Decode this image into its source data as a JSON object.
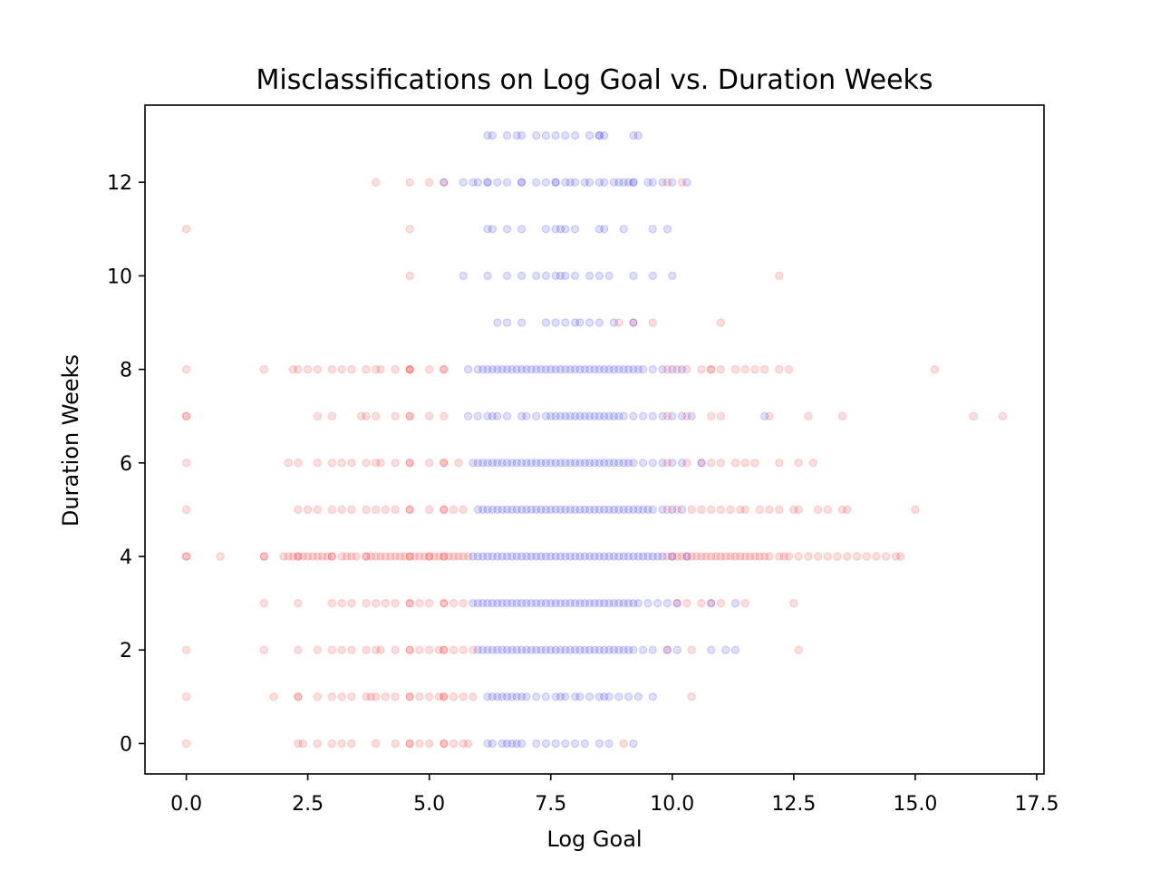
{
  "chart_data": {
    "type": "scatter",
    "title": "Misclassifications on Log Goal vs. Duration Weeks",
    "xlabel": "Log Goal",
    "ylabel": "Duration Weeks",
    "xlim": [
      -0.85,
      17.65
    ],
    "ylim": [
      -0.65,
      13.65
    ],
    "xticks": [
      "0.0",
      "2.5",
      "5.0",
      "7.5",
      "10.0",
      "12.5",
      "15.0",
      "17.5"
    ],
    "yticks": [
      "0",
      "2",
      "4",
      "6",
      "8",
      "10",
      "12"
    ],
    "xtick_values": [
      0,
      2.5,
      5,
      7.5,
      10,
      12.5,
      15,
      17.5
    ],
    "ytick_values": [
      0,
      2,
      4,
      6,
      8,
      10,
      12
    ],
    "marker_opacity": 0.12,
    "grid": false,
    "series": [
      {
        "color": "#ff0000",
        "rows": [
          {
            "y": 13,
            "x": []
          },
          {
            "y": 12,
            "x": [
              3.9,
              4.6,
              5.0,
              5.3,
              9.9,
              10.2
            ]
          },
          {
            "y": 11,
            "x": [
              0.0,
              4.6
            ]
          },
          {
            "y": 10,
            "x": [
              4.6,
              12.2
            ]
          },
          {
            "y": 9,
            "x": [
              8.9,
              9.2,
              9.6,
              11.0
            ]
          },
          {
            "y": 8,
            "x": [
              0.0,
              1.6,
              2.2,
              2.3,
              2.5,
              2.7,
              3.0,
              3.2,
              3.4,
              3.7,
              3.9,
              4.0,
              4.3,
              4.6,
              4.6,
              4.6,
              5.0,
              5.3,
              5.3,
              9.9,
              10.1,
              10.3,
              10.6,
              10.8,
              10.8,
              11.0,
              11.3,
              11.5,
              11.7,
              11.9,
              12.2,
              12.4,
              15.4
            ]
          },
          {
            "y": 7,
            "x": [
              0.0,
              0.0,
              2.7,
              3.0,
              3.6,
              3.7,
              3.9,
              4.3,
              4.6,
              4.6,
              5.0,
              5.3,
              9.9,
              10.3,
              10.8,
              11.0,
              12.0,
              12.8,
              13.5,
              16.2,
              16.8
            ]
          },
          {
            "y": 6,
            "x": [
              0.0,
              2.1,
              2.3,
              2.7,
              3.0,
              3.2,
              3.4,
              3.7,
              3.9,
              4.0,
              4.3,
              4.6,
              4.6,
              5.0,
              5.3,
              5.3,
              5.6,
              9.9,
              10.3,
              10.6,
              10.8,
              11.0,
              11.3,
              11.5,
              11.7,
              12.2,
              12.6,
              12.9
            ]
          },
          {
            "y": 5,
            "x": [
              0.0,
              2.3,
              2.5,
              2.7,
              3.0,
              3.2,
              3.4,
              3.7,
              3.9,
              4.1,
              4.3,
              4.6,
              4.6,
              5.0,
              5.3,
              5.3,
              5.5,
              5.7,
              9.9,
              10.1,
              10.4,
              10.6,
              10.8,
              11.0,
              11.2,
              11.4,
              11.5,
              11.8,
              12.0,
              12.2,
              12.5,
              12.6,
              13.0,
              13.2,
              13.5,
              13.6,
              15.0
            ]
          },
          {
            "y": 4,
            "x": [
              0.0,
              0.0,
              0.7,
              1.6,
              1.6,
              2.0,
              2.1,
              2.2,
              2.3,
              2.3,
              2.4,
              2.5,
              2.6,
              2.7,
              2.8,
              2.9,
              3.0,
              3.0,
              3.2,
              3.3,
              3.4,
              3.5,
              3.7,
              3.7,
              3.8,
              3.9,
              4.0,
              4.1,
              4.2,
              4.3,
              4.4,
              4.5,
              4.6,
              4.6,
              4.7,
              4.8,
              4.9,
              5.0,
              5.0,
              5.1,
              5.2,
              5.3,
              5.3,
              5.4,
              5.5,
              5.6,
              5.7,
              5.8,
              9.9,
              10.0,
              10.1,
              10.2,
              10.3,
              10.4,
              10.5,
              10.6,
              10.7,
              10.8,
              10.9,
              11.0,
              11.1,
              11.2,
              11.3,
              11.4,
              11.5,
              11.6,
              11.7,
              11.8,
              11.9,
              12.0,
              12.2,
              12.3,
              12.4,
              12.6,
              12.8,
              13.0,
              13.2,
              13.4,
              13.6,
              13.8,
              14.0,
              14.2,
              14.4,
              14.6,
              14.7
            ]
          },
          {
            "y": 3,
            "x": [
              1.6,
              2.3,
              3.0,
              3.2,
              3.4,
              3.7,
              3.9,
              4.1,
              4.3,
              4.6,
              4.6,
              4.8,
              5.0,
              5.3,
              5.3,
              5.5,
              5.7,
              10.1,
              10.3,
              10.6,
              10.8,
              11.0,
              11.5,
              12.5
            ]
          },
          {
            "y": 2,
            "x": [
              0.0,
              1.6,
              2.3,
              2.7,
              3.0,
              3.2,
              3.4,
              3.7,
              3.9,
              4.0,
              4.3,
              4.6,
              4.6,
              4.8,
              5.0,
              5.2,
              5.3,
              5.3,
              5.5,
              5.7,
              5.9,
              9.9,
              10.4,
              12.6
            ]
          },
          {
            "y": 1,
            "x": [
              0.0,
              1.8,
              2.3,
              2.3,
              2.7,
              3.0,
              3.2,
              3.4,
              3.7,
              3.8,
              3.9,
              4.1,
              4.3,
              4.6,
              4.6,
              4.8,
              5.0,
              5.2,
              5.3,
              5.3,
              5.5,
              5.7,
              5.9,
              10.4
            ]
          },
          {
            "y": 0,
            "x": [
              0.0,
              2.3,
              2.4,
              2.7,
              3.0,
              3.2,
              3.4,
              3.9,
              4.3,
              4.6,
              4.6,
              4.8,
              5.0,
              5.3,
              5.3,
              5.5,
              5.7,
              5.8,
              9.0
            ]
          }
        ]
      },
      {
        "color": "#0000ff",
        "rows": [
          {
            "y": 13,
            "x": [
              6.2,
              6.3,
              6.6,
              6.8,
              6.9,
              7.2,
              7.4,
              7.6,
              7.8,
              8.0,
              8.3,
              8.5,
              8.5,
              8.6,
              9.2,
              9.3
            ]
          },
          {
            "y": 12,
            "x": [
              5.3,
              5.7,
              5.9,
              6.0,
              6.2,
              6.2,
              6.4,
              6.6,
              6.9,
              6.9,
              7.2,
              7.4,
              7.6,
              7.6,
              7.8,
              7.9,
              8.0,
              8.2,
              8.3,
              8.5,
              8.6,
              8.8,
              8.9,
              9.0,
              9.1,
              9.2,
              9.2,
              9.5,
              9.6,
              9.8,
              10.0,
              10.3
            ]
          },
          {
            "y": 11,
            "x": [
              6.2,
              6.3,
              6.6,
              6.9,
              7.4,
              7.6,
              7.7,
              7.8,
              8.0,
              8.5,
              8.6,
              9.0,
              9.6,
              9.9
            ]
          },
          {
            "y": 10,
            "x": [
              5.7,
              6.2,
              6.6,
              6.9,
              7.2,
              7.4,
              7.6,
              7.7,
              7.8,
              8.0,
              8.3,
              8.5,
              8.7,
              9.2,
              9.6,
              10.0
            ]
          },
          {
            "y": 9,
            "x": [
              6.4,
              6.6,
              6.9,
              7.4,
              7.6,
              7.8,
              8.0,
              8.1,
              8.3,
              8.5,
              8.8,
              9.2
            ]
          },
          {
            "y": 8,
            "x": [
              5.8,
              6.0,
              6.1,
              6.2,
              6.3,
              6.4,
              6.5,
              6.6,
              6.7,
              6.8,
              6.9,
              7.0,
              7.1,
              7.2,
              7.3,
              7.4,
              7.5,
              7.6,
              7.7,
              7.8,
              7.9,
              8.0,
              8.1,
              8.2,
              8.3,
              8.4,
              8.5,
              8.6,
              8.7,
              8.8,
              8.9,
              9.0,
              9.1,
              9.2,
              9.3,
              9.4,
              9.6,
              9.8,
              10.0,
              10.2
            ]
          },
          {
            "y": 7,
            "x": [
              5.8,
              6.0,
              6.2,
              6.3,
              6.4,
              6.6,
              6.9,
              7.0,
              7.2,
              7.4,
              7.5,
              7.6,
              7.7,
              7.8,
              7.9,
              8.0,
              8.1,
              8.2,
              8.3,
              8.4,
              8.5,
              8.6,
              8.7,
              8.8,
              8.9,
              9.0,
              9.2,
              9.4,
              9.6,
              9.8,
              10.0,
              10.2,
              10.4,
              11.9
            ]
          },
          {
            "y": 6,
            "x": [
              5.9,
              6.0,
              6.1,
              6.2,
              6.3,
              6.4,
              6.5,
              6.6,
              6.7,
              6.8,
              6.9,
              7.0,
              7.1,
              7.2,
              7.3,
              7.4,
              7.5,
              7.6,
              7.7,
              7.8,
              7.9,
              8.0,
              8.1,
              8.2,
              8.3,
              8.4,
              8.5,
              8.6,
              8.7,
              8.8,
              8.9,
              9.0,
              9.1,
              9.2,
              9.4,
              9.6,
              9.8,
              10.0,
              10.2,
              10.6
            ]
          },
          {
            "y": 5,
            "x": [
              6.0,
              6.1,
              6.2,
              6.3,
              6.4,
              6.5,
              6.6,
              6.7,
              6.8,
              6.9,
              7.0,
              7.1,
              7.2,
              7.3,
              7.4,
              7.5,
              7.6,
              7.7,
              7.8,
              7.9,
              8.0,
              8.1,
              8.2,
              8.3,
              8.4,
              8.5,
              8.6,
              8.7,
              8.8,
              8.9,
              9.0,
              9.1,
              9.2,
              9.3,
              9.4,
              9.5,
              9.6,
              9.8,
              10.0,
              10.2
            ]
          },
          {
            "y": 4,
            "x": [
              5.9,
              6.0,
              6.1,
              6.2,
              6.3,
              6.4,
              6.5,
              6.6,
              6.7,
              6.8,
              6.9,
              7.0,
              7.1,
              7.2,
              7.3,
              7.4,
              7.5,
              7.6,
              7.7,
              7.8,
              7.9,
              8.0,
              8.1,
              8.2,
              8.3,
              8.4,
              8.5,
              8.6,
              8.7,
              8.8,
              8.9,
              9.0,
              9.1,
              9.2,
              9.3,
              9.4,
              9.5,
              9.6,
              9.7,
              9.8,
              10.0,
              10.3
            ]
          },
          {
            "y": 3,
            "x": [
              5.9,
              6.0,
              6.1,
              6.2,
              6.3,
              6.4,
              6.5,
              6.6,
              6.7,
              6.8,
              6.9,
              7.0,
              7.1,
              7.2,
              7.3,
              7.4,
              7.5,
              7.6,
              7.7,
              7.8,
              7.9,
              8.0,
              8.1,
              8.2,
              8.3,
              8.4,
              8.5,
              8.6,
              8.7,
              8.8,
              8.9,
              9.0,
              9.1,
              9.2,
              9.3,
              9.5,
              9.7,
              9.9,
              10.1,
              10.8,
              11.3
            ]
          },
          {
            "y": 2,
            "x": [
              6.0,
              6.1,
              6.2,
              6.3,
              6.4,
              6.5,
              6.6,
              6.7,
              6.8,
              6.9,
              7.0,
              7.1,
              7.2,
              7.3,
              7.4,
              7.5,
              7.6,
              7.7,
              7.8,
              7.9,
              8.0,
              8.1,
              8.2,
              8.3,
              8.4,
              8.5,
              8.6,
              8.7,
              8.8,
              8.9,
              9.0,
              9.1,
              9.2,
              9.4,
              9.6,
              9.9,
              10.1,
              10.8,
              11.1,
              11.3
            ]
          },
          {
            "y": 1,
            "x": [
              6.2,
              6.3,
              6.4,
              6.5,
              6.6,
              6.7,
              6.8,
              6.9,
              7.0,
              7.2,
              7.4,
              7.6,
              7.7,
              7.8,
              8.0,
              8.1,
              8.3,
              8.5,
              8.6,
              8.7,
              8.9,
              9.1,
              9.3,
              9.6
            ]
          },
          {
            "y": 0,
            "x": [
              6.2,
              6.3,
              6.5,
              6.6,
              6.7,
              6.8,
              6.9,
              7.2,
              7.4,
              7.6,
              7.8,
              8.0,
              8.2,
              8.5,
              8.7,
              9.2
            ]
          }
        ]
      }
    ]
  }
}
